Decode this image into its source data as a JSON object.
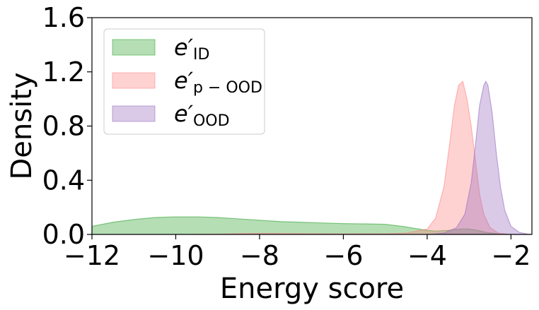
{
  "chart_data": {
    "type": "area",
    "xlabel": "Energy score",
    "ylabel": "Density",
    "xlim": [
      -12,
      -1.5
    ],
    "ylim": [
      0,
      1.6
    ],
    "xticks": [
      -12,
      -10,
      -8,
      -6,
      -4,
      -2
    ],
    "xtick_labels": [
      "−12",
      "−10",
      "−8",
      "−6",
      "−4",
      "−2"
    ],
    "yticks": [
      0.0,
      0.4,
      0.8,
      1.2,
      1.6
    ],
    "ytick_labels": [
      "0.0",
      "0.4",
      "0.8",
      "1.2",
      "1.6"
    ],
    "grid": false,
    "legend_position": "top-left",
    "series": [
      {
        "name": "e′ID",
        "name_base": "e′",
        "name_sub": "ID",
        "color": "#2ca02c",
        "x": [
          -12,
          -11.5,
          -11,
          -10.5,
          -10,
          -9.5,
          -9,
          -8.5,
          -8,
          -7.5,
          -7,
          -6.5,
          -6,
          -5.5,
          -5,
          -4.6,
          -4.3,
          -4.0,
          -3.8,
          -3.5,
          -3.2,
          -3.0,
          -2.8,
          -2.6,
          -2.3,
          -2.0,
          -1.5
        ],
        "y": [
          0.06,
          0.09,
          0.11,
          0.125,
          0.13,
          0.13,
          0.125,
          0.115,
          0.105,
          0.095,
          0.09,
          0.085,
          0.08,
          0.078,
          0.075,
          0.06,
          0.045,
          0.03,
          0.025,
          0.03,
          0.04,
          0.04,
          0.03,
          0.015,
          0.005,
          0.0,
          0.0
        ]
      },
      {
        "name": "e′p − OOD",
        "name_base": "e′",
        "name_sub": "p − OOD",
        "color": "#ff7f7f",
        "x": [
          -12,
          -10,
          -9.0,
          -8.5,
          -8.0,
          -7.0,
          -6.0,
          -5.0,
          -4.5,
          -4.0,
          -3.8,
          -3.6,
          -3.45,
          -3.35,
          -3.25,
          -3.15,
          -3.05,
          -2.95,
          -2.85,
          -2.75,
          -2.65,
          -2.5,
          -2.3,
          -2.0,
          -1.5
        ],
        "y": [
          0,
          0,
          0.002,
          0.006,
          0.008,
          0.006,
          0.004,
          0.005,
          0.01,
          0.04,
          0.12,
          0.35,
          0.7,
          0.95,
          1.1,
          1.13,
          1.0,
          0.8,
          0.55,
          0.3,
          0.15,
          0.05,
          0.01,
          0.0,
          0.0
        ]
      },
      {
        "name": "e′OOD",
        "name_base": "e′",
        "name_sub": "OOD",
        "color": "#9467bd",
        "x": [
          -12,
          -4.0,
          -3.6,
          -3.3,
          -3.1,
          -2.95,
          -2.85,
          -2.75,
          -2.65,
          -2.6,
          -2.55,
          -2.45,
          -2.35,
          -2.25,
          -2.15,
          -2.0,
          -1.8,
          -1.6,
          -1.5
        ],
        "y": [
          0,
          0,
          0.01,
          0.05,
          0.15,
          0.38,
          0.65,
          0.95,
          1.1,
          1.13,
          1.1,
          0.9,
          0.6,
          0.35,
          0.18,
          0.06,
          0.015,
          0.003,
          0
        ]
      }
    ]
  }
}
